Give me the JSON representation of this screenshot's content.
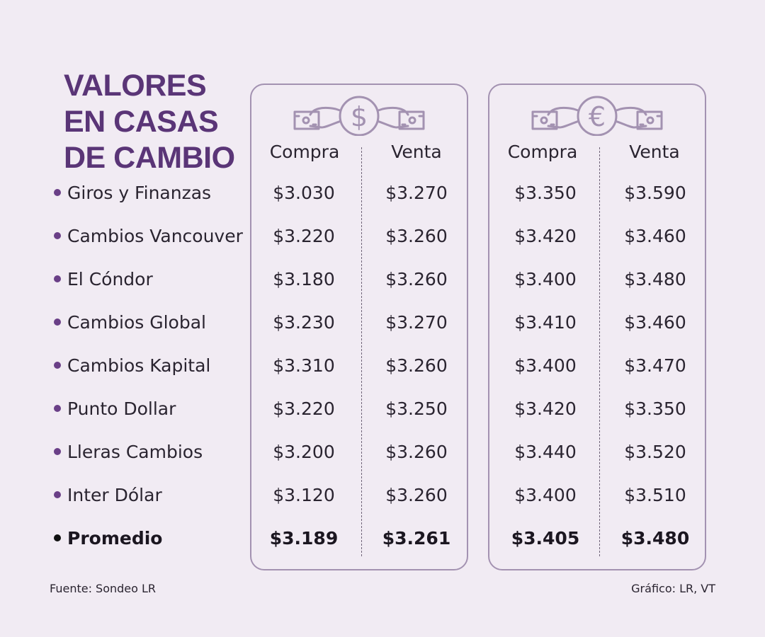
{
  "title": {
    "line1": "VALORES",
    "line2": "EN CASAS",
    "line3": "DE CAMBIO"
  },
  "panels": {
    "usd": {
      "icon": "dollar-icon",
      "symbol": "$",
      "buy_label": "Compra",
      "sell_label": "Venta"
    },
    "eur": {
      "icon": "euro-icon",
      "symbol": "€",
      "buy_label": "Compra",
      "sell_label": "Venta"
    }
  },
  "rows": [
    {
      "name": "Giros y Finanzas",
      "usd_buy": "$3.030",
      "usd_sell": "$3.270",
      "eur_buy": "$3.350",
      "eur_sell": "$3.590"
    },
    {
      "name": "Cambios Vancouver",
      "usd_buy": "$3.220",
      "usd_sell": "$3.260",
      "eur_buy": "$3.420",
      "eur_sell": "$3.460"
    },
    {
      "name": "El Cóndor",
      "usd_buy": "$3.180",
      "usd_sell": "$3.260",
      "eur_buy": "$3.400",
      "eur_sell": "$3.480"
    },
    {
      "name": "Cambios Global",
      "usd_buy": "$3.230",
      "usd_sell": "$3.270",
      "eur_buy": "$3.410",
      "eur_sell": "$3.460"
    },
    {
      "name": "Cambios Kapital",
      "usd_buy": "$3.310",
      "usd_sell": "$3.260",
      "eur_buy": "$3.400",
      "eur_sell": "$3.470"
    },
    {
      "name": "Punto Dollar",
      "usd_buy": "$3.220",
      "usd_sell": "$3.250",
      "eur_buy": "$3.420",
      "eur_sell": "$3.350"
    },
    {
      "name": "Lleras Cambios",
      "usd_buy": "$3.200",
      "usd_sell": "$3.260",
      "eur_buy": "$3.440",
      "eur_sell": "$3.520"
    },
    {
      "name": "Inter Dólar",
      "usd_buy": "$3.120",
      "usd_sell": "$3.260",
      "eur_buy": "$3.400",
      "eur_sell": "$3.510"
    }
  ],
  "average": {
    "name": "Promedio",
    "usd_buy": "$3.189",
    "usd_sell": "$3.261",
    "eur_buy": "$3.405",
    "eur_sell": "$3.480"
  },
  "footer": {
    "source": "Fuente: Sondeo LR",
    "credit": "Gráfico: LR, VT"
  },
  "colors": {
    "background": "#f1ebf3",
    "title": "#5a3577",
    "accent": "#a392b1",
    "bullet": "#6a3f87"
  }
}
